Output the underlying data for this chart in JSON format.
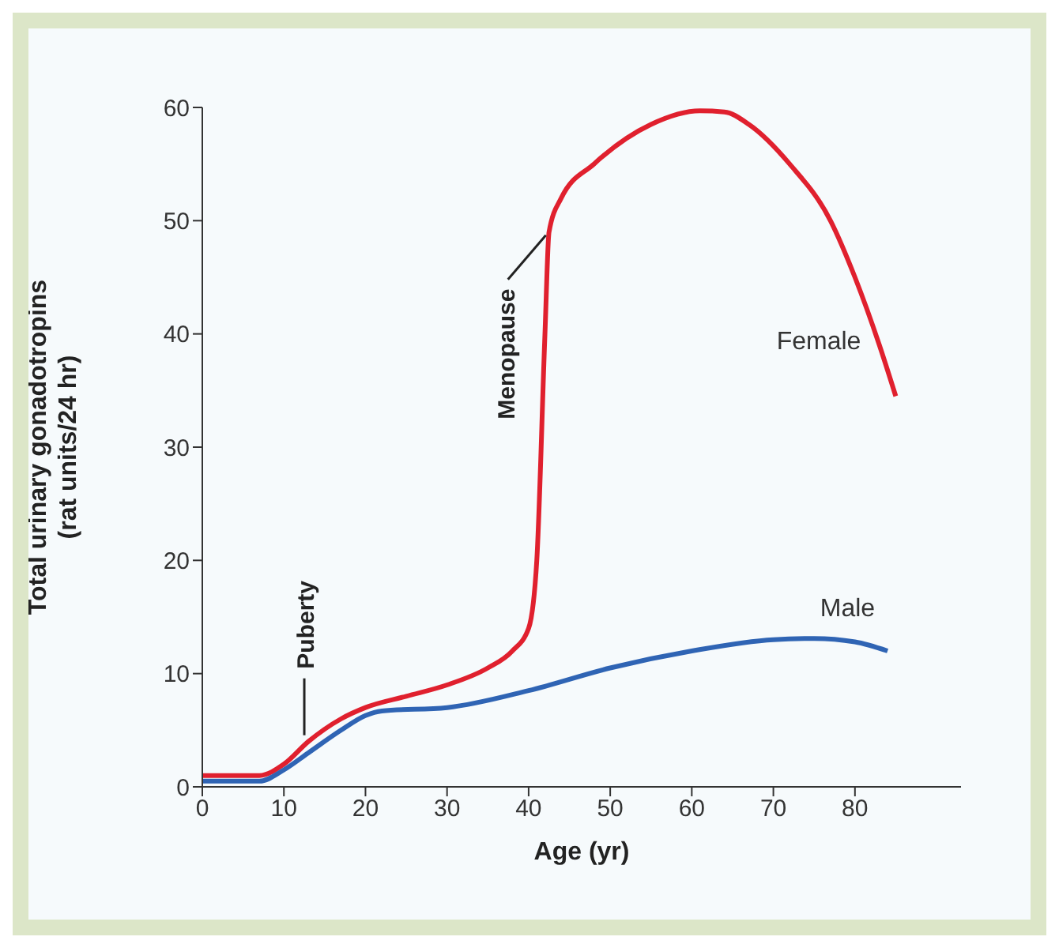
{
  "chart_data": {
    "type": "line",
    "xlabel": "Age (yr)",
    "ylabel": "Total urinary gonadotropins\n(rat units/24 hr)",
    "xlim": [
      0,
      93
    ],
    "xticks": [
      0,
      10,
      20,
      30,
      40,
      50,
      60,
      70,
      80
    ],
    "ylim": [
      0,
      60
    ],
    "yticks": [
      0,
      10,
      20,
      30,
      40,
      50,
      60
    ],
    "grid": false,
    "legend": false,
    "marker": "none",
    "line_style": "solid",
    "series": [
      {
        "name": "Female",
        "color": "#e0202e",
        "x": [
          0,
          7,
          10,
          13,
          17,
          20,
          25,
          30,
          35,
          38,
          40,
          41,
          42,
          42.5,
          44,
          48,
          55,
          61,
          64,
          67,
          72,
          77,
          80,
          83,
          85
        ],
        "values": [
          1,
          1,
          2,
          4,
          6,
          7,
          8,
          9,
          10.5,
          12,
          14,
          20,
          40,
          49,
          52,
          55,
          58.5,
          59.7,
          59.6,
          58.5,
          55,
          50,
          45,
          39,
          34.5
        ]
      },
      {
        "name": "Male",
        "color": "#2f64b4",
        "x": [
          0,
          7,
          10,
          13,
          17,
          20,
          22,
          30,
          40,
          50,
          60,
          70,
          75,
          80,
          84
        ],
        "values": [
          0.5,
          0.5,
          1.5,
          3,
          5,
          6.3,
          6.7,
          7,
          8.5,
          10.5,
          12,
          13,
          13.1,
          12.8,
          12
        ]
      }
    ],
    "annotations": [
      {
        "text": "Puberty",
        "x": 12.5,
        "y": 4
      },
      {
        "text": "Menopause",
        "x": 42.5,
        "y": 49
      }
    ]
  }
}
